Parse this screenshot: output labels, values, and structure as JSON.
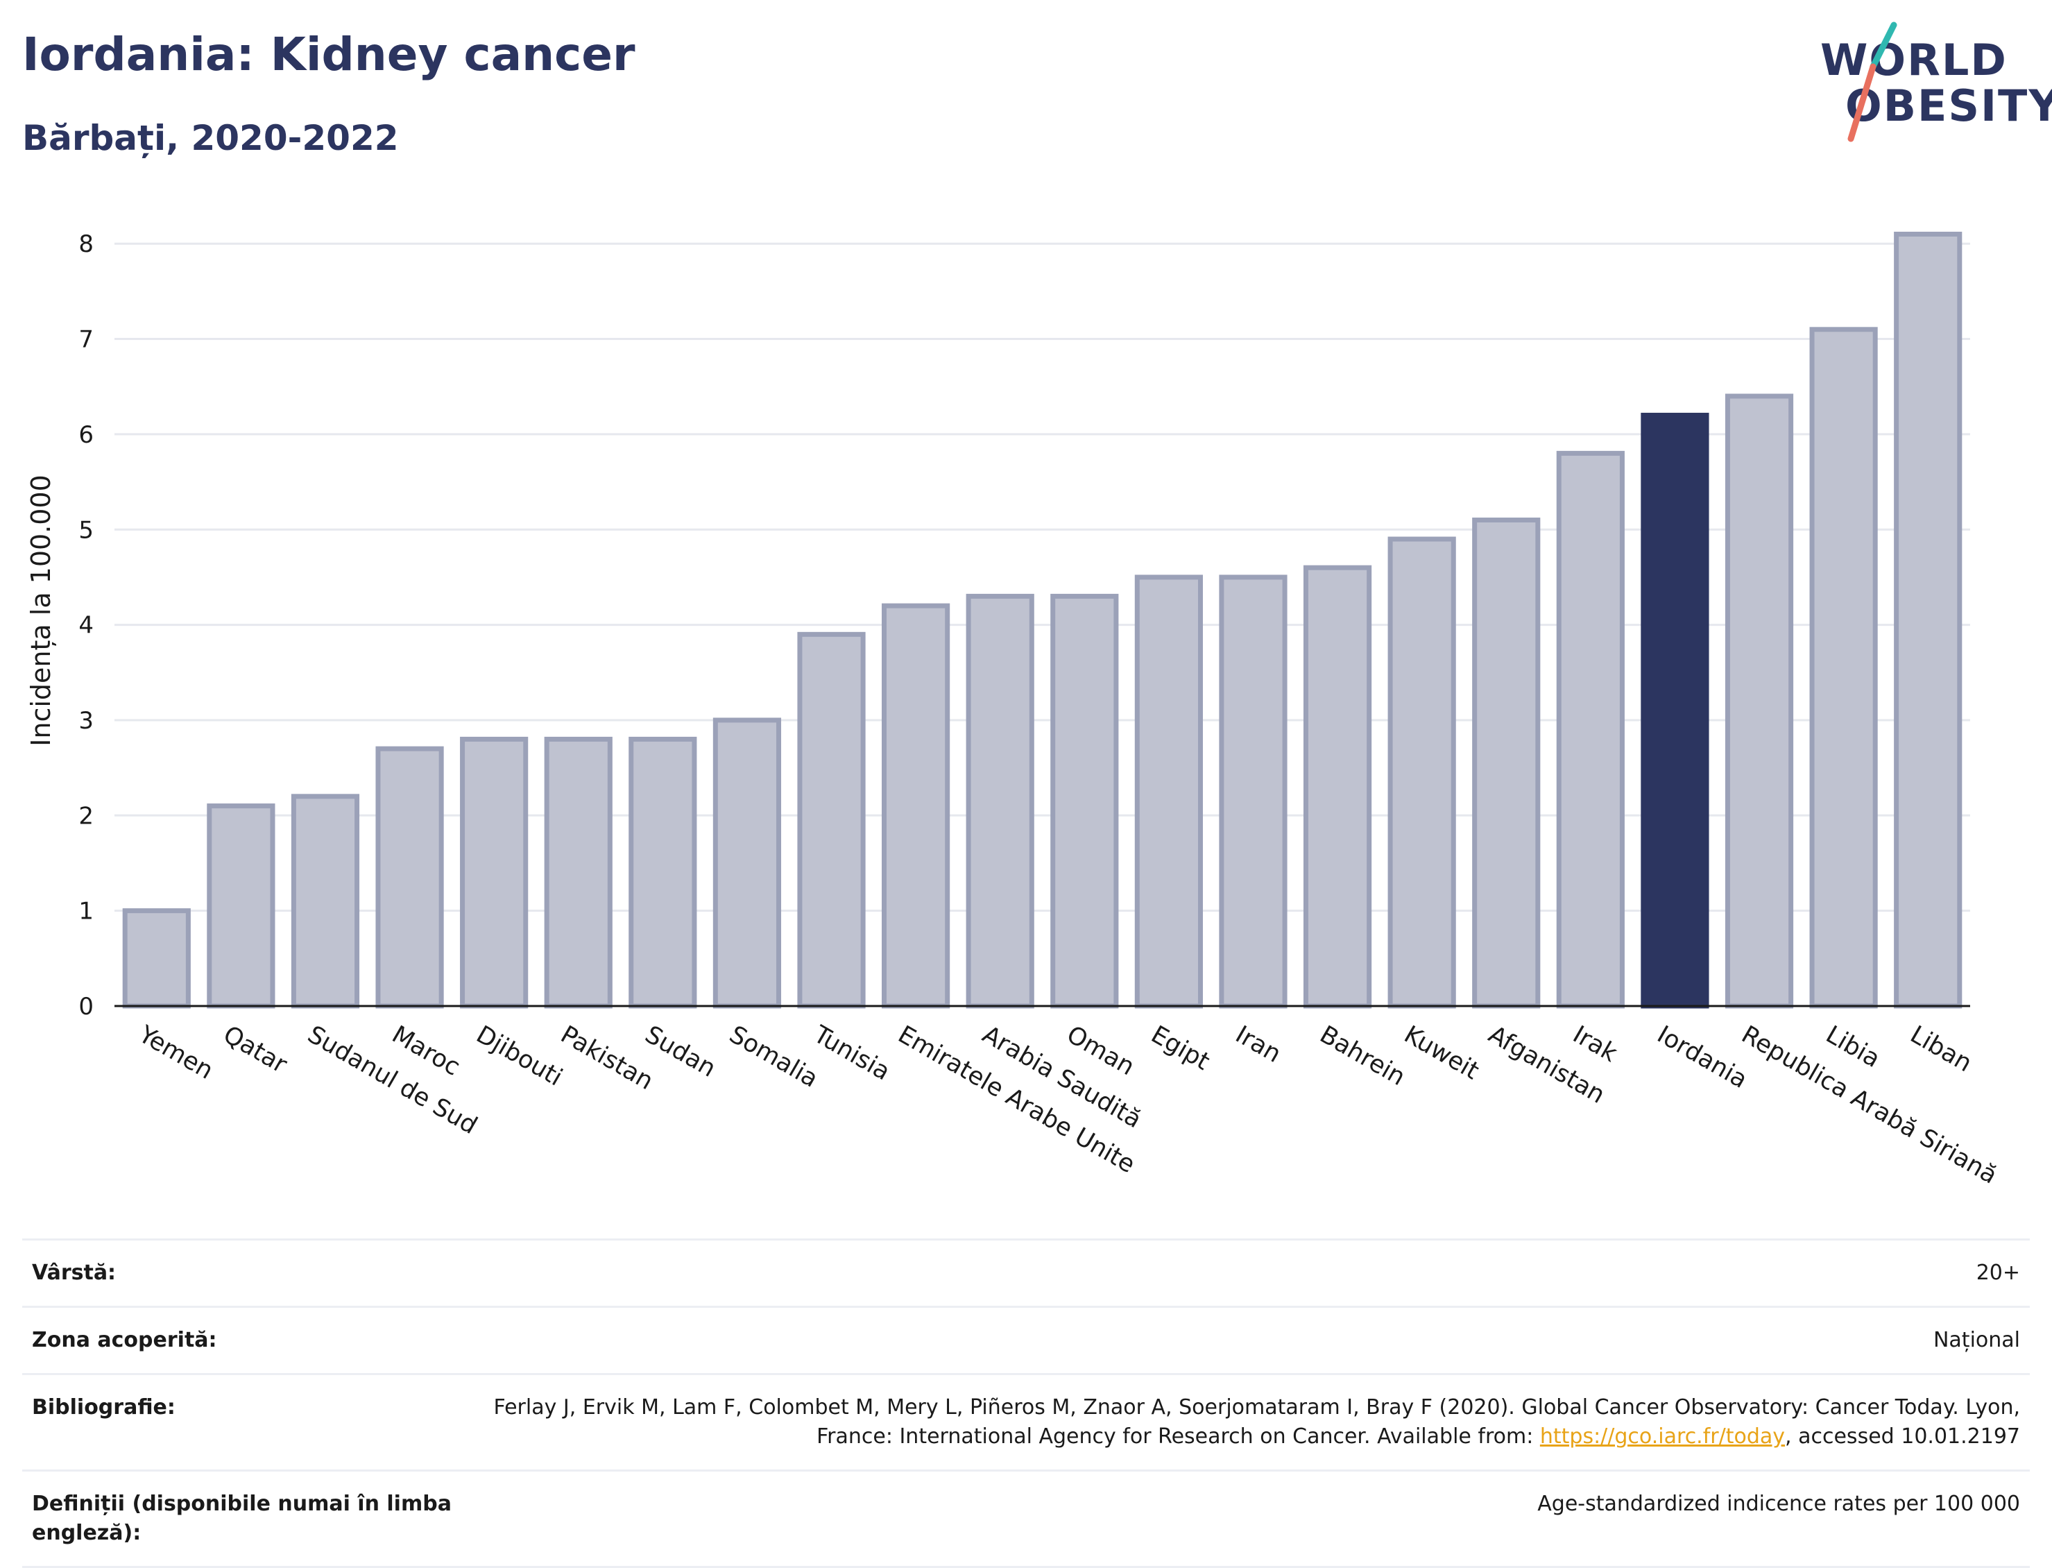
{
  "header": {
    "title": "Iordania: Kidney cancer",
    "subtitle": "Bărbați, 2020-2022"
  },
  "logo": {
    "line1": "WORLD",
    "line2": "OBESITY"
  },
  "colors": {
    "bar": "#bfc2d0",
    "bar_border": "#9ba1b8",
    "highlight": "#2c3560",
    "grid": "#e6e8ee",
    "axis": "#1a1a1a"
  },
  "chart_data": {
    "type": "bar",
    "title": "Iordania: Kidney cancer",
    "subtitle": "Bărbați, 2020-2022",
    "ylabel": "Incidența la 100.000",
    "xlabel": "",
    "ylim": [
      0,
      8.3
    ],
    "yticks": [
      0,
      1,
      2,
      3,
      4,
      5,
      6,
      7,
      8
    ],
    "grid": true,
    "highlight": "Iordania",
    "categories": [
      "Yemen",
      "Qatar",
      "Sudanul de Sud",
      "Maroc",
      "Djibouti",
      "Pakistan",
      "Sudan",
      "Somalia",
      "Tunisia",
      "Emiratele Arabe Unite",
      "Arabia Saudită",
      "Oman",
      "Egipt",
      "Iran",
      "Bahrein",
      "Kuweit",
      "Afganistan",
      "Irak",
      "Iordania",
      "Republica Arabă Siriană",
      "Libia",
      "Liban"
    ],
    "values": [
      1.0,
      2.1,
      2.2,
      2.7,
      2.8,
      2.8,
      2.8,
      3.0,
      3.9,
      4.2,
      4.3,
      4.3,
      4.5,
      4.5,
      4.6,
      4.9,
      5.1,
      5.8,
      6.2,
      6.4,
      7.1,
      8.1
    ]
  },
  "info": [
    {
      "label": "Vârstă:",
      "value": "20+"
    },
    {
      "label": "Zona acoperită:",
      "value": "Național"
    },
    {
      "label": "Bibliografie:",
      "value_pre": "Ferlay J, Ervik M, Lam F, Colombet M, Mery L, Piñeros M, Znaor A, Soerjomataram I, Bray F (2020). Global Cancer Observatory: Cancer Today. Lyon, France: International Agency for Research on Cancer. Available from: ",
      "link": "https://gco.iarc.fr/today",
      "value_post": ", accessed 10.01.2197"
    },
    {
      "label": "Definiții (disponibile numai în limba engleză):",
      "value": "Age-standardized indicence rates per 100 000"
    }
  ]
}
